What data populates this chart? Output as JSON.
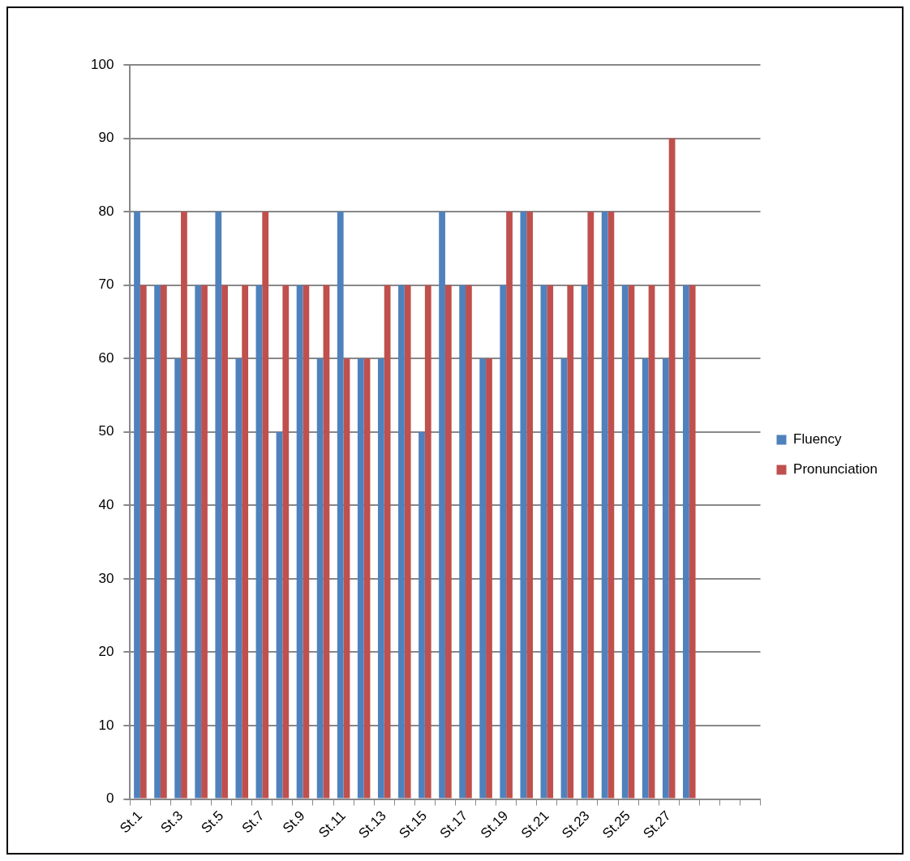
{
  "chart_data": {
    "type": "bar",
    "categories": [
      "St.1",
      null,
      "St.3",
      null,
      "St.5",
      null,
      "St.7",
      null,
      "St.9",
      null,
      "St.11",
      null,
      "St.13",
      null,
      "St.15",
      null,
      "St.17",
      null,
      "St.19",
      null,
      "St.21",
      null,
      "St.23",
      null,
      "St.25",
      null,
      "St.27",
      null,
      null,
      null,
      null
    ],
    "series": [
      {
        "name": "Fluency",
        "color": "#4f81bd",
        "values": [
          80,
          70,
          60,
          70,
          80,
          60,
          70,
          50,
          70,
          60,
          80,
          60,
          60,
          70,
          50,
          80,
          70,
          60,
          70,
          80,
          70,
          60,
          70,
          80,
          70,
          60,
          60,
          70,
          null,
          null,
          null
        ]
      },
      {
        "name": "Pronunciation",
        "color": "#c0504d",
        "values": [
          70,
          70,
          80,
          70,
          70,
          70,
          80,
          70,
          70,
          70,
          60,
          60,
          70,
          70,
          70,
          70,
          70,
          60,
          80,
          80,
          70,
          70,
          80,
          80,
          70,
          70,
          90,
          70,
          null,
          null,
          null
        ]
      }
    ],
    "ylim": [
      0,
      100
    ],
    "yticks": [
      0,
      10,
      20,
      30,
      40,
      50,
      60,
      70,
      80,
      90,
      100
    ],
    "grid": "y",
    "legend": "right"
  }
}
